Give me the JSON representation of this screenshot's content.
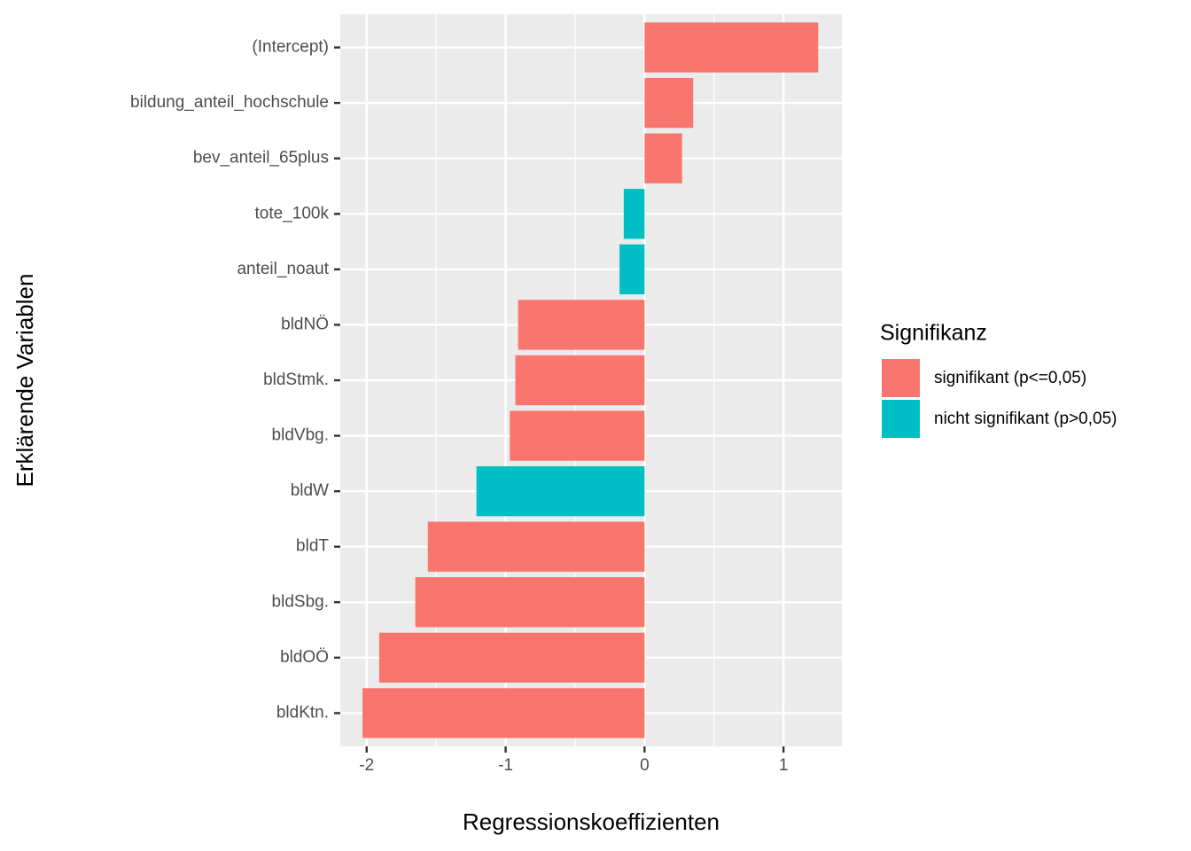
{
  "chart_data": {
    "type": "bar",
    "orientation": "horizontal",
    "x_label": "Regressionskoeffizienten",
    "y_label": "Erklärende Variablen",
    "categories": [
      "(Intercept)",
      "bildung_anteil_hochschule",
      "bev_anteil_65plus",
      "tote_100k",
      "anteil_noaut",
      "bldNÖ",
      "bldStmk.",
      "bldVbg.",
      "bldW",
      "bldT",
      "bldSbg.",
      "bldOÖ",
      "bldKtn."
    ],
    "series": [
      {
        "name": "signifikant (p<=0,05)",
        "color": "#F8766D",
        "values": [
          1.25,
          0.35,
          0.27,
          null,
          null,
          -0.91,
          -0.93,
          -0.97,
          null,
          -1.56,
          -1.65,
          -1.91,
          -2.03
        ]
      },
      {
        "name": "nicht signifikant (p>0,05)",
        "color": "#00BFC4",
        "values": [
          null,
          null,
          null,
          -0.15,
          -0.18,
          null,
          null,
          null,
          -1.21,
          null,
          null,
          null,
          null
        ]
      }
    ],
    "legend_title": "Signifikanz",
    "legend_position": "right",
    "xlim": [
      -2.19,
      1.42
    ],
    "xticks": [
      -2,
      -1,
      0,
      1
    ],
    "grid": true
  }
}
